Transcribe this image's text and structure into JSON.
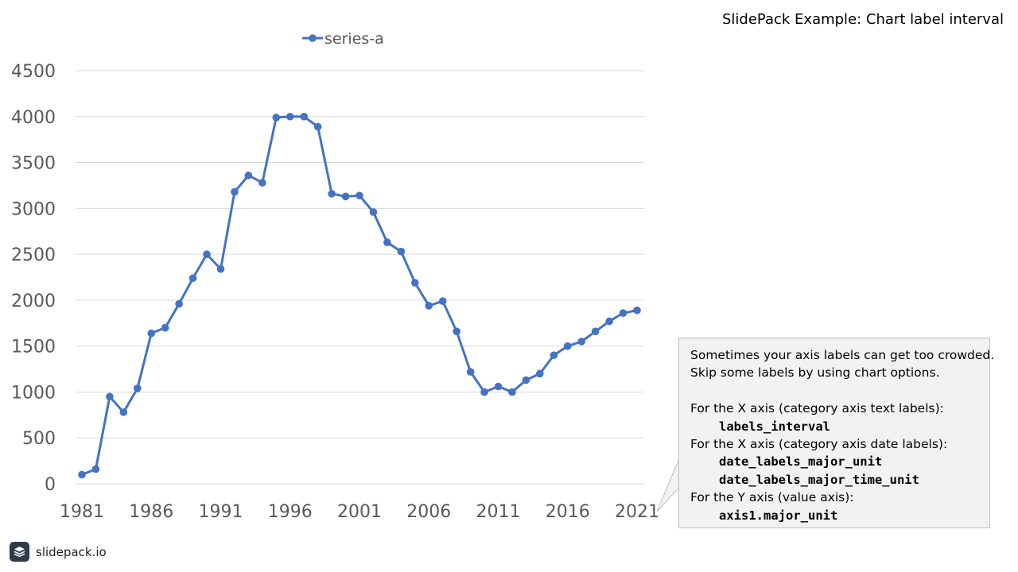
{
  "slide": {
    "title": "SlidePack Example: Chart label interval"
  },
  "chart_data": {
    "type": "line",
    "x": [
      1981,
      1982,
      1983,
      1984,
      1985,
      1986,
      1987,
      1988,
      1989,
      1990,
      1991,
      1992,
      1993,
      1994,
      1995,
      1996,
      1997,
      1998,
      1999,
      2000,
      2001,
      2002,
      2003,
      2004,
      2005,
      2006,
      2007,
      2008,
      2009,
      2010,
      2011,
      2012,
      2013,
      2014,
      2015,
      2016,
      2017,
      2018,
      2019,
      2020,
      2021
    ],
    "series": [
      {
        "name": "series-a",
        "values": [
          100,
          160,
          950,
          780,
          1040,
          1640,
          1700,
          1960,
          2240,
          2500,
          2340,
          3180,
          3360,
          3280,
          3990,
          4000,
          4000,
          3890,
          3160,
          3130,
          3140,
          2960,
          2630,
          2530,
          2190,
          1940,
          1990,
          1660,
          1220,
          1000,
          1060,
          1000,
          1130,
          1200,
          1400,
          1500,
          1550,
          1660,
          1770,
          1860,
          1890
        ]
      }
    ],
    "x_tick_labels": [
      "1981",
      "1986",
      "1991",
      "1996",
      "2001",
      "2006",
      "2011",
      "2016",
      "2021"
    ],
    "y_tick_labels": [
      "0",
      "500",
      "1000",
      "1500",
      "2000",
      "2500",
      "3000",
      "3500",
      "4000",
      "4500"
    ],
    "ylim": [
      0,
      4500
    ],
    "y_major_unit": 500,
    "x_label_interval": 5,
    "grid": true,
    "legend_position": "top",
    "colors": {
      "series": "#4472c4",
      "grid": "#d9d9d9",
      "tick_text": "#595959"
    }
  },
  "callout": {
    "line1": "Sometimes your axis labels can get too crowded.",
    "line2": "Skip some labels by using chart options.",
    "x_text_heading": "For the X axis (category axis text labels):",
    "x_text_option": "labels_interval",
    "x_date_heading": "For the X axis (category axis date labels):",
    "x_date_option1": "date_labels_major_unit",
    "x_date_option2": "date_labels_major_time_unit",
    "y_heading": "For the Y axis (value axis):",
    "y_option": "axis1.major_unit",
    "colors": {
      "background": "#f2f2f2",
      "border": "#bfbfbf"
    }
  },
  "brand": {
    "text": "slidepack.io",
    "icon": "slidepack-logo-icon"
  }
}
